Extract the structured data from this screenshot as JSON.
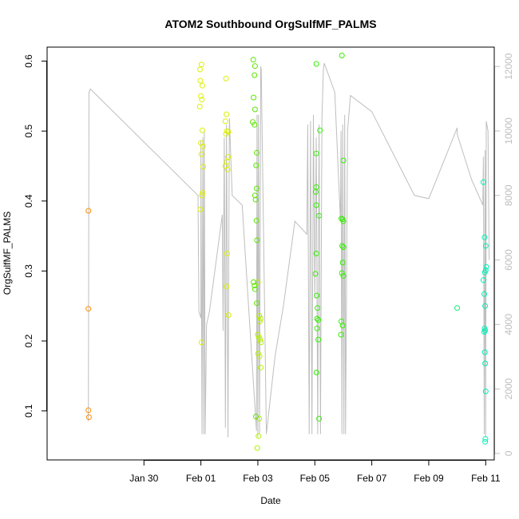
{
  "chart_data": {
    "type": "scatter",
    "title": "ATOM2 Southbound OrgSulfMF_PALMS",
    "xlabel": "Date",
    "ylabel": "OrgSulfMF_PALMS",
    "xlim": [
      26.6,
      42.3
    ],
    "ylim": [
      0.03,
      0.62
    ],
    "x_ticks": [
      {
        "value": 30,
        "label": "Jan 30"
      },
      {
        "value": 32,
        "label": "Feb 01"
      },
      {
        "value": 34,
        "label": "Feb 03"
      },
      {
        "value": 36,
        "label": "Feb 05"
      },
      {
        "value": 38,
        "label": "Feb 07"
      },
      {
        "value": 40,
        "label": "Feb 09"
      },
      {
        "value": 42,
        "label": "Feb 11"
      }
    ],
    "y_ticks": [
      0.1,
      0.2,
      0.3,
      0.4,
      0.5,
      0.6
    ],
    "y2lim": [
      -200,
      12600
    ],
    "y2_ticks": [
      0,
      2000,
      4000,
      6000,
      8000,
      10000,
      12000
    ],
    "grid": false,
    "colors": {
      "orange": "#ff8c00",
      "yellow": "#dcf000",
      "yellowgreen": "#b4f000",
      "green": "#5ae600",
      "brightgreen": "#32f000",
      "springgreen": "#00f06e",
      "aqua": "#00f0b4",
      "altitude": "#bebebe"
    },
    "series": [
      {
        "color_key": "orange",
        "points": [
          [
            28.05,
            0.386
          ],
          [
            28.05,
            0.246
          ],
          [
            28.05,
            0.101
          ],
          [
            28.07,
            0.091
          ]
        ]
      },
      {
        "color_key": "yellow",
        "points": [
          [
            31.97,
            0.588
          ],
          [
            32.02,
            0.595
          ],
          [
            31.98,
            0.572
          ],
          [
            32.05,
            0.565
          ],
          [
            32.0,
            0.55
          ],
          [
            32.03,
            0.545
          ],
          [
            31.96,
            0.535
          ],
          [
            32.05,
            0.501
          ],
          [
            32.0,
            0.483
          ],
          [
            32.07,
            0.478
          ],
          [
            32.02,
            0.467
          ],
          [
            32.08,
            0.449
          ],
          [
            32.06,
            0.412
          ],
          [
            32.03,
            0.408
          ],
          [
            31.98,
            0.388
          ],
          [
            32.02,
            0.198
          ],
          [
            32.88,
            0.575
          ],
          [
            32.9,
            0.524
          ],
          [
            32.86,
            0.514
          ],
          [
            32.91,
            0.5
          ],
          [
            32.96,
            0.499
          ],
          [
            32.88,
            0.496
          ],
          [
            32.95,
            0.463
          ],
          [
            32.92,
            0.456
          ],
          [
            32.86,
            0.45
          ],
          [
            32.94,
            0.445
          ],
          [
            32.92,
            0.325
          ],
          [
            32.9,
            0.278
          ],
          [
            32.97,
            0.237
          ]
        ]
      },
      {
        "color_key": "yellowgreen",
        "points": [
          [
            34.0,
            0.284
          ],
          [
            34.05,
            0.236
          ],
          [
            34.1,
            0.232
          ],
          [
            34.07,
            0.228
          ],
          [
            34.0,
            0.209
          ],
          [
            34.04,
            0.205
          ],
          [
            34.08,
            0.202
          ],
          [
            34.11,
            0.198
          ],
          [
            34.01,
            0.182
          ],
          [
            34.06,
            0.178
          ],
          [
            34.1,
            0.162
          ],
          [
            34.05,
            0.089
          ],
          [
            34.02,
            0.064
          ],
          [
            33.98,
            0.047
          ]
        ]
      },
      {
        "color_key": "green",
        "points": [
          [
            33.84,
            0.602
          ],
          [
            33.9,
            0.593
          ],
          [
            33.88,
            0.58
          ],
          [
            33.85,
            0.548
          ],
          [
            33.9,
            0.531
          ],
          [
            33.82,
            0.513
          ],
          [
            33.88,
            0.509
          ],
          [
            33.96,
            0.469
          ],
          [
            33.94,
            0.451
          ],
          [
            33.96,
            0.418
          ],
          [
            33.9,
            0.408
          ],
          [
            33.92,
            0.402
          ],
          [
            33.95,
            0.372
          ],
          [
            33.97,
            0.344
          ],
          [
            33.85,
            0.284
          ],
          [
            33.88,
            0.279
          ],
          [
            33.9,
            0.274
          ],
          [
            33.96,
            0.254
          ],
          [
            33.93,
            0.092
          ]
        ]
      },
      {
        "color_key": "brightgreen",
        "points": [
          [
            36.05,
            0.596
          ],
          [
            36.05,
            0.468
          ],
          [
            36.05,
            0.42
          ],
          [
            36.03,
            0.413
          ],
          [
            36.05,
            0.394
          ],
          [
            36.05,
            0.325
          ],
          [
            36.02,
            0.296
          ],
          [
            36.07,
            0.265
          ],
          [
            36.09,
            0.247
          ],
          [
            36.08,
            0.232
          ],
          [
            36.12,
            0.23
          ],
          [
            36.08,
            0.218
          ],
          [
            36.12,
            0.202
          ],
          [
            36.06,
            0.155
          ],
          [
            36.15,
            0.089
          ],
          [
            36.18,
            0.501
          ],
          [
            36.15,
            0.379
          ],
          [
            36.95,
            0.608
          ],
          [
            37.0,
            0.458
          ],
          [
            36.93,
            0.375
          ],
          [
            36.98,
            0.374
          ],
          [
            37.0,
            0.371
          ],
          [
            36.96,
            0.336
          ],
          [
            37.0,
            0.334
          ],
          [
            36.98,
            0.312
          ],
          [
            36.95,
            0.297
          ],
          [
            37.0,
            0.293
          ],
          [
            36.93,
            0.228
          ],
          [
            36.98,
            0.222
          ],
          [
            36.92,
            0.209
          ]
        ]
      },
      {
        "color_key": "springgreen",
        "points": [
          [
            41.0,
            0.247
          ]
        ]
      },
      {
        "color_key": "aqua",
        "points": [
          [
            41.92,
            0.427
          ],
          [
            41.96,
            0.348
          ],
          [
            42.0,
            0.336
          ],
          [
            42.02,
            0.306
          ],
          [
            41.97,
            0.298
          ],
          [
            42.0,
            0.301
          ],
          [
            41.92,
            0.287
          ],
          [
            41.95,
            0.267
          ],
          [
            41.98,
            0.25
          ],
          [
            41.96,
            0.218
          ],
          [
            41.95,
            0.213
          ],
          [
            41.98,
            0.215
          ],
          [
            41.97,
            0.184
          ],
          [
            41.98,
            0.168
          ],
          [
            42.0,
            0.128
          ],
          [
            41.99,
            0.06
          ],
          [
            41.98,
            0.056
          ]
        ]
      }
    ],
    "altitude_line": {
      "color_key": "altitude",
      "axis": "right",
      "points": [
        [
          28.05,
          1000
        ],
        [
          28.07,
          11200
        ],
        [
          28.12,
          11300
        ],
        [
          31.9,
          8000
        ],
        [
          31.93,
          4400
        ],
        [
          32.0,
          4200
        ],
        [
          32.0,
          9700
        ],
        [
          32.04,
          600
        ],
        [
          32.07,
          9800
        ],
        [
          32.1,
          600
        ],
        [
          32.12,
          10000
        ],
        [
          32.15,
          600
        ],
        [
          32.2,
          4000
        ],
        [
          32.25,
          4200
        ],
        [
          32.3,
          4400
        ],
        [
          32.75,
          7400
        ],
        [
          32.78,
          3800
        ],
        [
          32.82,
          9800
        ],
        [
          32.86,
          800
        ],
        [
          32.9,
          10200
        ],
        [
          32.95,
          500
        ],
        [
          33.0,
          10400
        ],
        [
          33.1,
          8000
        ],
        [
          33.45,
          7700
        ],
        [
          33.95,
          700
        ],
        [
          33.97,
          10500
        ],
        [
          34.0,
          500
        ],
        [
          34.02,
          10500
        ],
        [
          34.06,
          600
        ],
        [
          34.1,
          12000
        ],
        [
          34.12,
          11900
        ],
        [
          34.3,
          600
        ],
        [
          34.6,
          3000
        ],
        [
          34.9,
          4600
        ],
        [
          35.3,
          7200
        ],
        [
          35.72,
          6800
        ],
        [
          35.75,
          10200
        ],
        [
          35.8,
          600
        ],
        [
          35.85,
          10300
        ],
        [
          35.9,
          600
        ],
        [
          35.95,
          10500
        ],
        [
          36.0,
          4800
        ],
        [
          36.05,
          9800
        ],
        [
          36.1,
          600
        ],
        [
          36.15,
          10200
        ],
        [
          36.2,
          600
        ],
        [
          36.25,
          10400
        ],
        [
          36.3,
          11900
        ],
        [
          36.33,
          12100
        ],
        [
          36.7,
          11200
        ],
        [
          36.9,
          7200
        ],
        [
          36.92,
          10000
        ],
        [
          36.95,
          600
        ],
        [
          36.98,
          10200
        ],
        [
          37.02,
          600
        ],
        [
          37.05,
          10500
        ],
        [
          37.08,
          600
        ],
        [
          37.15,
          10000
        ],
        [
          37.25,
          11100
        ],
        [
          38.0,
          10600
        ],
        [
          39.5,
          8000
        ],
        [
          40.0,
          7900
        ],
        [
          40.5,
          9000
        ],
        [
          41.0,
          10100
        ],
        [
          41.0,
          9900
        ],
        [
          41.5,
          8500
        ],
        [
          41.9,
          7700
        ],
        [
          41.92,
          9200
        ],
        [
          41.95,
          600
        ],
        [
          41.98,
          9400
        ],
        [
          42.0,
          500
        ],
        [
          42.02,
          10300
        ],
        [
          42.08,
          10000
        ],
        [
          42.12,
          6000
        ]
      ]
    }
  }
}
